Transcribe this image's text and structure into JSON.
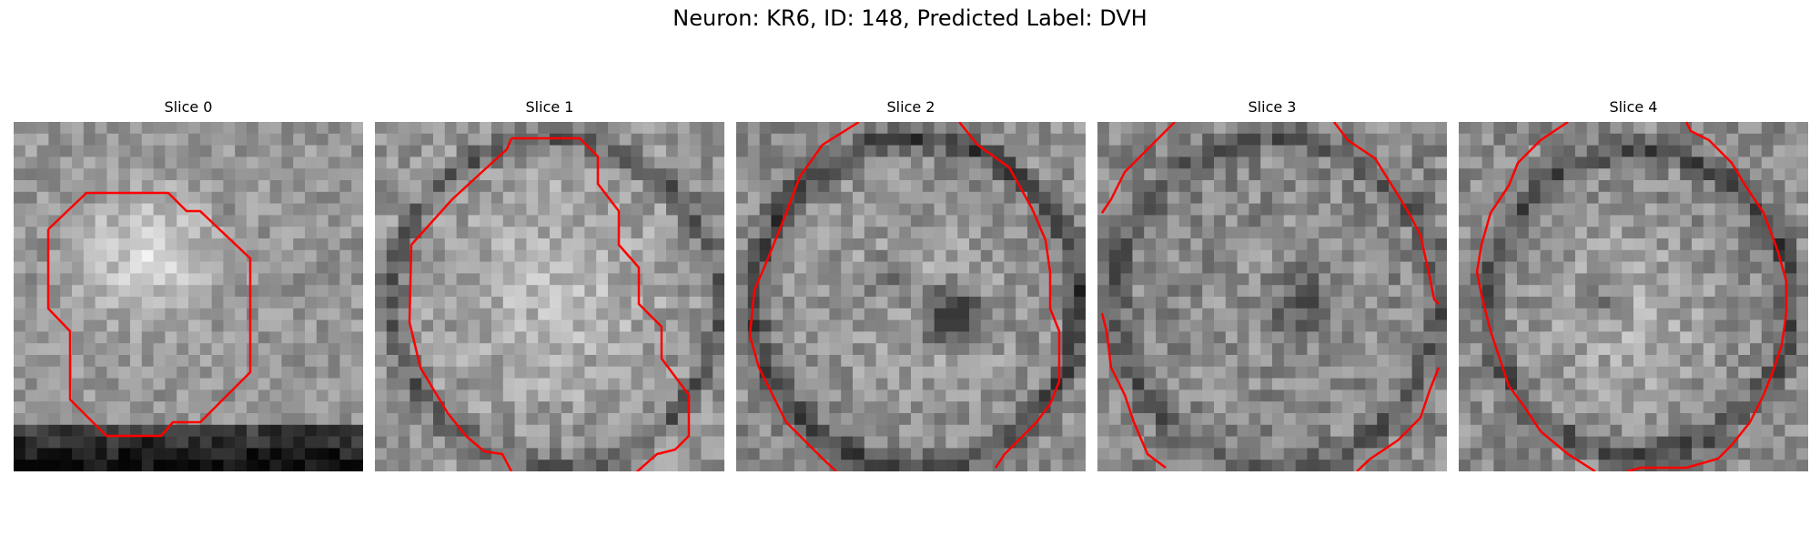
{
  "figure": {
    "title": "Neuron: KR6, ID: 148, Predicted Label: DVH"
  },
  "contour_color": "#ff0000",
  "slices": [
    {
      "title": "Slice 0"
    },
    {
      "title": "Slice 1"
    },
    {
      "title": "Slice 2"
    },
    {
      "title": "Slice 3"
    },
    {
      "title": "Slice 4"
    }
  ]
}
